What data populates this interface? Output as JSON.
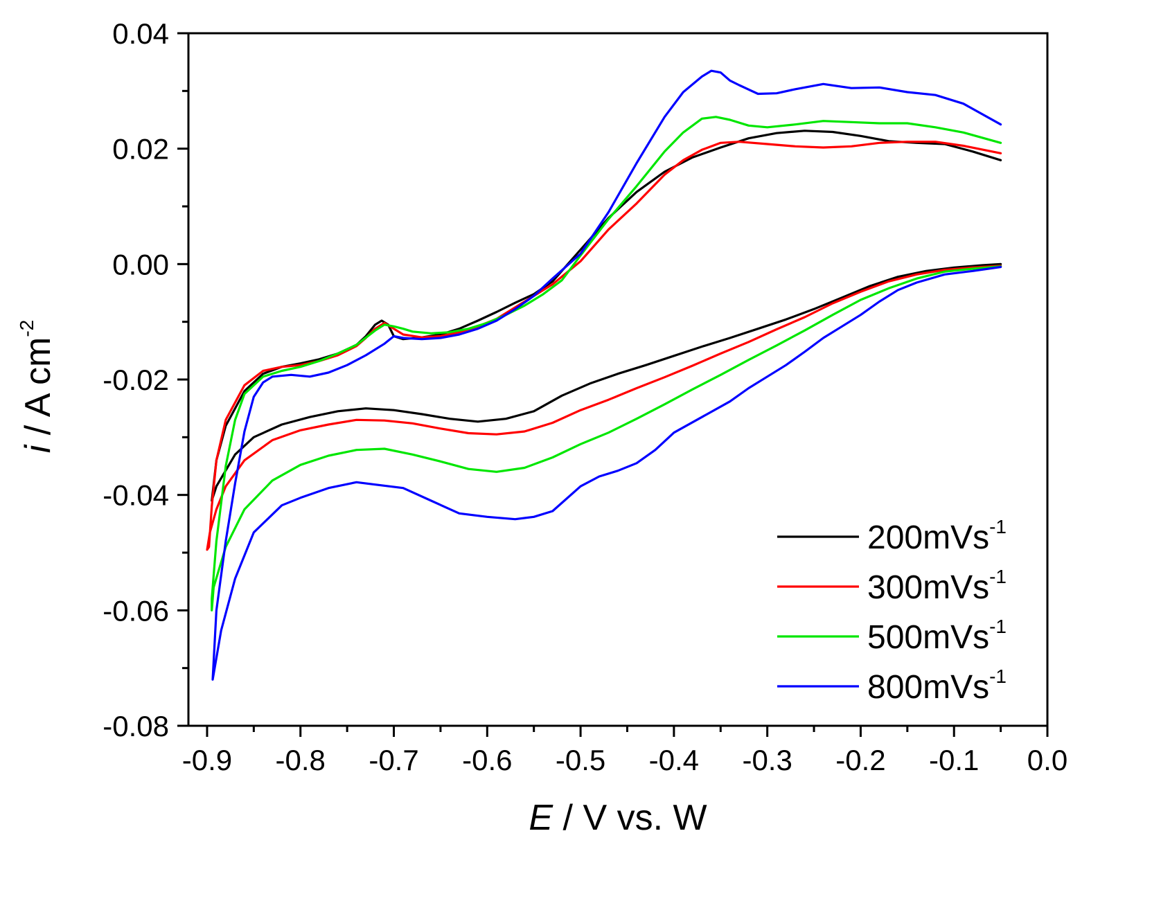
{
  "chart_data": {
    "type": "line",
    "title": "",
    "xlabel": {
      "italic": "E",
      "rest": " / V vs. W"
    },
    "ylabel": {
      "italic": "i",
      "rest": " / A cm",
      "sup": "-2"
    },
    "xlim": [
      -0.92,
      0.0
    ],
    "ylim": [
      -0.08,
      0.04
    ],
    "x_ticks": [
      -0.9,
      -0.8,
      -0.7,
      -0.6,
      -0.5,
      -0.4,
      -0.3,
      -0.2,
      -0.1,
      0.0
    ],
    "x_tick_labels": [
      "-0.9",
      "-0.8",
      "-0.7",
      "-0.6",
      "-0.5",
      "-0.4",
      "-0.3",
      "-0.2",
      "-0.1",
      "0.0"
    ],
    "y_ticks": [
      -0.08,
      -0.06,
      -0.04,
      -0.02,
      0.0,
      0.02,
      0.04
    ],
    "y_tick_labels": [
      "-0.08",
      "-0.06",
      "-0.04",
      "-0.02",
      "0.00",
      "0.02",
      "0.04"
    ],
    "grid": false,
    "legend_position": "bottom-right",
    "series": [
      {
        "name": "200mVs",
        "sup": "-1",
        "color": "#000000",
        "anodic_x": [
          -0.895,
          -0.89,
          -0.88,
          -0.86,
          -0.84,
          -0.82,
          -0.8,
          -0.78,
          -0.76,
          -0.74,
          -0.73,
          -0.72,
          -0.713,
          -0.706,
          -0.7,
          -0.69,
          -0.67,
          -0.65,
          -0.63,
          -0.61,
          -0.59,
          -0.57,
          -0.55,
          -0.53,
          -0.5,
          -0.47,
          -0.44,
          -0.41,
          -0.38,
          -0.35,
          -0.32,
          -0.29,
          -0.26,
          -0.23,
          -0.2,
          -0.17,
          -0.14,
          -0.11,
          -0.08,
          -0.05
        ],
        "anodic_y": [
          -0.041,
          -0.034,
          -0.028,
          -0.022,
          -0.019,
          -0.0178,
          -0.0172,
          -0.0165,
          -0.0155,
          -0.014,
          -0.0125,
          -0.0105,
          -0.0098,
          -0.0105,
          -0.0125,
          -0.013,
          -0.0127,
          -0.0122,
          -0.0112,
          -0.0098,
          -0.0083,
          -0.0067,
          -0.0052,
          -0.003,
          0.0025,
          0.008,
          0.0125,
          0.016,
          0.0185,
          0.0202,
          0.0218,
          0.0227,
          0.0231,
          0.0229,
          0.0222,
          0.0213,
          0.021,
          0.0208,
          0.0195,
          0.018
        ],
        "cathodic_x": [
          -0.05,
          -0.07,
          -0.1,
          -0.13,
          -0.16,
          -0.19,
          -0.22,
          -0.25,
          -0.28,
          -0.31,
          -0.34,
          -0.37,
          -0.4,
          -0.43,
          -0.46,
          -0.49,
          -0.52,
          -0.55,
          -0.58,
          -0.61,
          -0.64,
          -0.67,
          -0.7,
          -0.73,
          -0.76,
          -0.79,
          -0.82,
          -0.85,
          -0.87,
          -0.89,
          -0.895
        ],
        "cathodic_y": [
          0.0,
          -0.0002,
          -0.0006,
          -0.0012,
          -0.0022,
          -0.0038,
          -0.0058,
          -0.0078,
          -0.0096,
          -0.0112,
          -0.0128,
          -0.0143,
          -0.0159,
          -0.0175,
          -0.019,
          -0.0207,
          -0.0228,
          -0.0255,
          -0.0268,
          -0.0273,
          -0.0268,
          -0.026,
          -0.0253,
          -0.025,
          -0.0255,
          -0.0265,
          -0.0278,
          -0.03,
          -0.033,
          -0.0385,
          -0.041
        ]
      },
      {
        "name": "300mVs",
        "sup": "-1",
        "color": "#ff0000",
        "anodic_x": [
          -0.898,
          -0.895,
          -0.89,
          -0.88,
          -0.86,
          -0.84,
          -0.82,
          -0.8,
          -0.78,
          -0.76,
          -0.74,
          -0.73,
          -0.72,
          -0.71,
          -0.7,
          -0.69,
          -0.67,
          -0.65,
          -0.63,
          -0.61,
          -0.59,
          -0.57,
          -0.55,
          -0.53,
          -0.5,
          -0.47,
          -0.44,
          -0.41,
          -0.39,
          -0.37,
          -0.35,
          -0.33,
          -0.3,
          -0.27,
          -0.24,
          -0.21,
          -0.18,
          -0.15,
          -0.12,
          -0.09,
          -0.05
        ],
        "anodic_y": [
          -0.049,
          -0.042,
          -0.034,
          -0.027,
          -0.021,
          -0.0185,
          -0.0178,
          -0.0175,
          -0.0168,
          -0.0158,
          -0.0142,
          -0.0128,
          -0.0112,
          -0.0102,
          -0.0112,
          -0.0122,
          -0.0127,
          -0.0125,
          -0.0118,
          -0.0108,
          -0.0095,
          -0.0075,
          -0.0055,
          -0.0035,
          0.0005,
          0.006,
          0.0105,
          0.0155,
          0.018,
          0.0198,
          0.021,
          0.0212,
          0.0208,
          0.0204,
          0.0202,
          0.0204,
          0.021,
          0.0212,
          0.0212,
          0.0205,
          0.0192
        ],
        "cathodic_x": [
          -0.05,
          -0.08,
          -0.11,
          -0.14,
          -0.17,
          -0.2,
          -0.23,
          -0.26,
          -0.29,
          -0.32,
          -0.35,
          -0.38,
          -0.41,
          -0.44,
          -0.47,
          -0.5,
          -0.53,
          -0.56,
          -0.59,
          -0.62,
          -0.65,
          -0.68,
          -0.71,
          -0.74,
          -0.77,
          -0.8,
          -0.83,
          -0.86,
          -0.88,
          -0.89,
          -0.897,
          -0.9,
          -0.898
        ],
        "cathodic_y": [
          -0.0003,
          -0.0006,
          -0.001,
          -0.0018,
          -0.003,
          -0.0048,
          -0.0068,
          -0.0092,
          -0.0113,
          -0.0135,
          -0.0155,
          -0.0176,
          -0.0196,
          -0.0215,
          -0.0235,
          -0.0253,
          -0.0275,
          -0.029,
          -0.0295,
          -0.0293,
          -0.0285,
          -0.0276,
          -0.0271,
          -0.027,
          -0.0278,
          -0.0288,
          -0.0305,
          -0.034,
          -0.0385,
          -0.0425,
          -0.0465,
          -0.0495,
          -0.049
        ]
      },
      {
        "name": "500mVs",
        "sup": "-1",
        "color": "#00e600",
        "anodic_x": [
          -0.895,
          -0.89,
          -0.88,
          -0.87,
          -0.86,
          -0.84,
          -0.82,
          -0.8,
          -0.78,
          -0.76,
          -0.74,
          -0.72,
          -0.71,
          -0.7,
          -0.69,
          -0.68,
          -0.66,
          -0.64,
          -0.62,
          -0.6,
          -0.58,
          -0.56,
          -0.54,
          -0.52,
          -0.5,
          -0.47,
          -0.44,
          -0.41,
          -0.39,
          -0.37,
          -0.355,
          -0.34,
          -0.32,
          -0.3,
          -0.27,
          -0.24,
          -0.21,
          -0.18,
          -0.15,
          -0.12,
          -0.09,
          -0.05
        ],
        "anodic_y": [
          -0.058,
          -0.048,
          -0.035,
          -0.027,
          -0.0225,
          -0.0195,
          -0.0185,
          -0.0178,
          -0.0168,
          -0.0155,
          -0.014,
          -0.0115,
          -0.0105,
          -0.0108,
          -0.0112,
          -0.0117,
          -0.012,
          -0.0118,
          -0.0112,
          -0.0102,
          -0.0088,
          -0.0072,
          -0.0052,
          -0.0028,
          0.0015,
          0.0078,
          0.0135,
          0.0195,
          0.0228,
          0.0252,
          0.0255,
          0.025,
          0.024,
          0.0237,
          0.0242,
          0.0248,
          0.0246,
          0.0244,
          0.0244,
          0.0237,
          0.0228,
          0.021
        ],
        "cathodic_x": [
          -0.05,
          -0.08,
          -0.11,
          -0.14,
          -0.17,
          -0.2,
          -0.23,
          -0.26,
          -0.29,
          -0.32,
          -0.35,
          -0.38,
          -0.41,
          -0.44,
          -0.47,
          -0.5,
          -0.53,
          -0.56,
          -0.59,
          -0.62,
          -0.65,
          -0.68,
          -0.71,
          -0.74,
          -0.77,
          -0.8,
          -0.83,
          -0.86,
          -0.88,
          -0.893,
          -0.895
        ],
        "cathodic_y": [
          -0.0004,
          -0.0008,
          -0.0013,
          -0.0025,
          -0.0042,
          -0.0062,
          -0.0088,
          -0.0115,
          -0.0141,
          -0.0166,
          -0.0192,
          -0.0217,
          -0.0243,
          -0.0268,
          -0.0292,
          -0.0312,
          -0.0335,
          -0.0353,
          -0.036,
          -0.0355,
          -0.0342,
          -0.033,
          -0.032,
          -0.0322,
          -0.0332,
          -0.0348,
          -0.0375,
          -0.0425,
          -0.049,
          -0.056,
          -0.06
        ]
      },
      {
        "name": "800mVs",
        "sup": "-1",
        "color": "#0000ff",
        "anodic_x": [
          -0.894,
          -0.89,
          -0.88,
          -0.87,
          -0.86,
          -0.85,
          -0.84,
          -0.83,
          -0.81,
          -0.79,
          -0.77,
          -0.75,
          -0.73,
          -0.71,
          -0.7,
          -0.69,
          -0.67,
          -0.65,
          -0.63,
          -0.61,
          -0.59,
          -0.57,
          -0.55,
          -0.53,
          -0.5,
          -0.47,
          -0.44,
          -0.41,
          -0.39,
          -0.37,
          -0.36,
          -0.35,
          -0.34,
          -0.33,
          -0.31,
          -0.29,
          -0.27,
          -0.24,
          -0.21,
          -0.18,
          -0.15,
          -0.12,
          -0.09,
          -0.05
        ],
        "anodic_y": [
          -0.072,
          -0.06,
          -0.048,
          -0.038,
          -0.029,
          -0.023,
          -0.0205,
          -0.0195,
          -0.0192,
          -0.0195,
          -0.0188,
          -0.0175,
          -0.0158,
          -0.0138,
          -0.0125,
          -0.0128,
          -0.013,
          -0.0128,
          -0.0122,
          -0.0112,
          -0.0098,
          -0.0078,
          -0.0055,
          -0.0025,
          0.0018,
          0.009,
          0.0175,
          0.0255,
          0.0298,
          0.0325,
          0.0335,
          0.0332,
          0.0318,
          0.031,
          0.0295,
          0.0296,
          0.0303,
          0.0312,
          0.0305,
          0.0306,
          0.0298,
          0.0293,
          0.0278,
          0.0242
        ],
        "cathodic_x": [
          -0.05,
          -0.08,
          -0.11,
          -0.14,
          -0.16,
          -0.18,
          -0.2,
          -0.22,
          -0.24,
          -0.26,
          -0.28,
          -0.3,
          -0.32,
          -0.34,
          -0.37,
          -0.4,
          -0.42,
          -0.44,
          -0.46,
          -0.48,
          -0.5,
          -0.53,
          -0.55,
          -0.57,
          -0.6,
          -0.63,
          -0.66,
          -0.69,
          -0.72,
          -0.74,
          -0.77,
          -0.8,
          -0.82,
          -0.85,
          -0.87,
          -0.885,
          -0.894
        ],
        "cathodic_y": [
          -0.0005,
          -0.0012,
          -0.0018,
          -0.0032,
          -0.0045,
          -0.0065,
          -0.0088,
          -0.0108,
          -0.0128,
          -0.0152,
          -0.0175,
          -0.0195,
          -0.0215,
          -0.0238,
          -0.0265,
          -0.0292,
          -0.0322,
          -0.0345,
          -0.0358,
          -0.0368,
          -0.0385,
          -0.0428,
          -0.0438,
          -0.0442,
          -0.0438,
          -0.0432,
          -0.041,
          -0.0388,
          -0.0382,
          -0.0378,
          -0.0388,
          -0.0405,
          -0.0418,
          -0.0465,
          -0.0545,
          -0.0635,
          -0.072
        ]
      }
    ]
  }
}
